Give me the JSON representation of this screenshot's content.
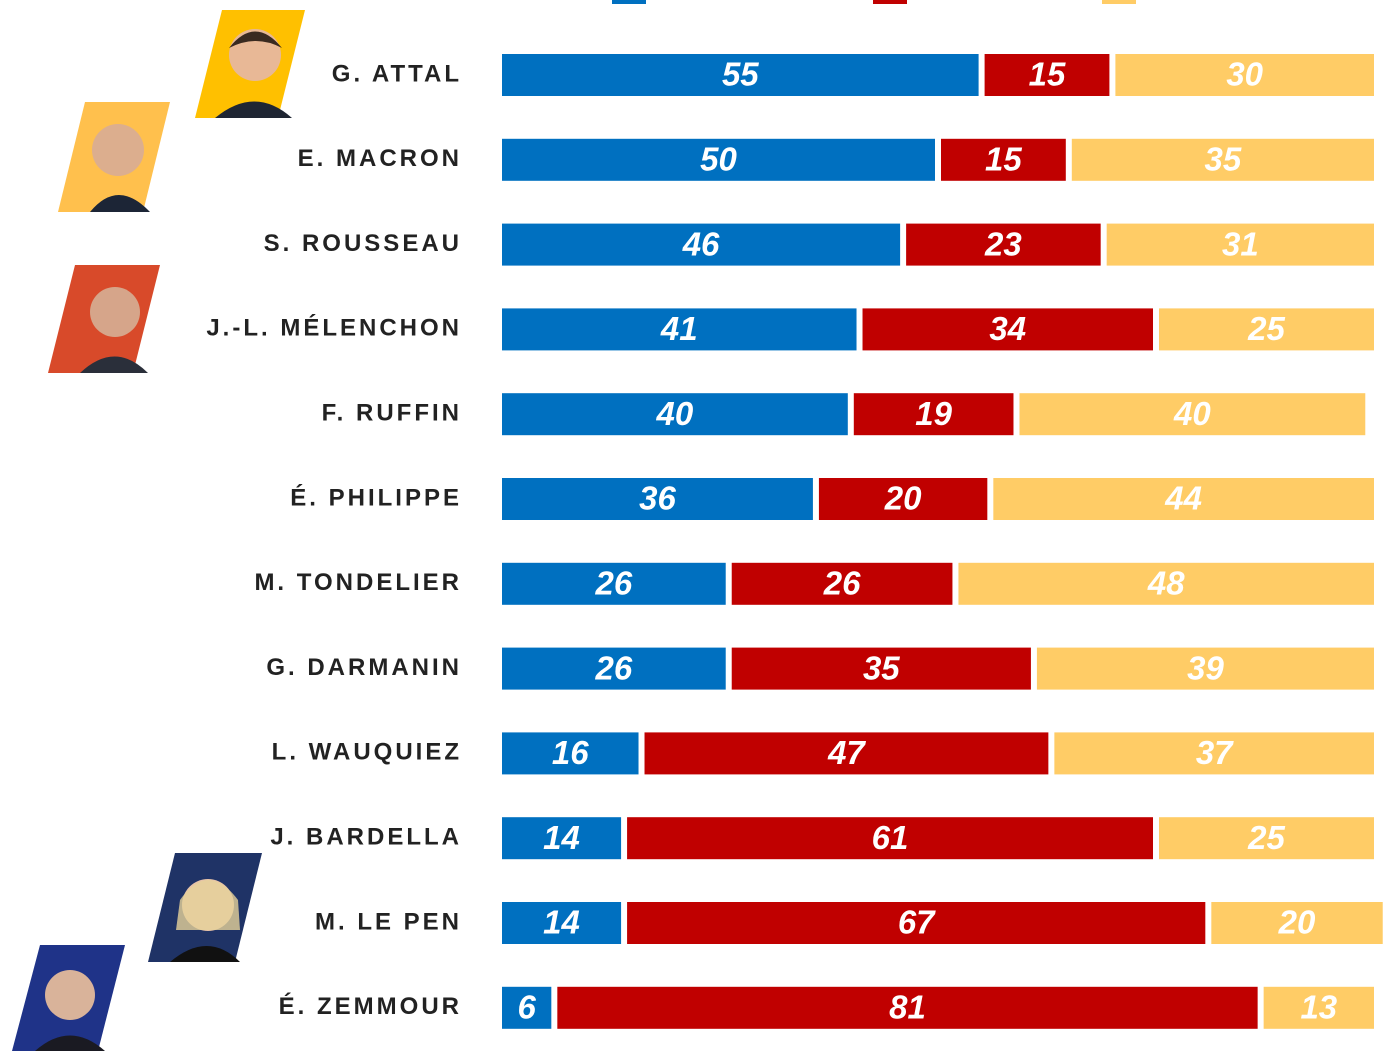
{
  "chart_data": {
    "type": "stacked-bar",
    "categories": [
      "G. ATTAL",
      "E. MACRON",
      "S. ROUSSEAU",
      "J.-L. MÉLENCHON",
      "F. RUFFIN",
      "É. PHILIPPE",
      "M. TONDELIER",
      "G. DARMANIN",
      "L. WAUQUIEZ",
      "J. BARDELLA",
      "M. LE PEN",
      "É. ZEMMOUR"
    ],
    "series": [
      {
        "color": "#0070c0",
        "values": [
          55,
          50,
          46,
          41,
          40,
          36,
          26,
          26,
          16,
          14,
          14,
          6
        ]
      },
      {
        "color": "#c00000",
        "values": [
          15,
          15,
          23,
          34,
          19,
          20,
          26,
          35,
          47,
          61,
          67,
          81
        ]
      },
      {
        "color": "#ffcc66",
        "values": [
          30,
          35,
          31,
          25,
          40,
          44,
          48,
          39,
          37,
          25,
          20,
          13
        ]
      }
    ]
  }
}
